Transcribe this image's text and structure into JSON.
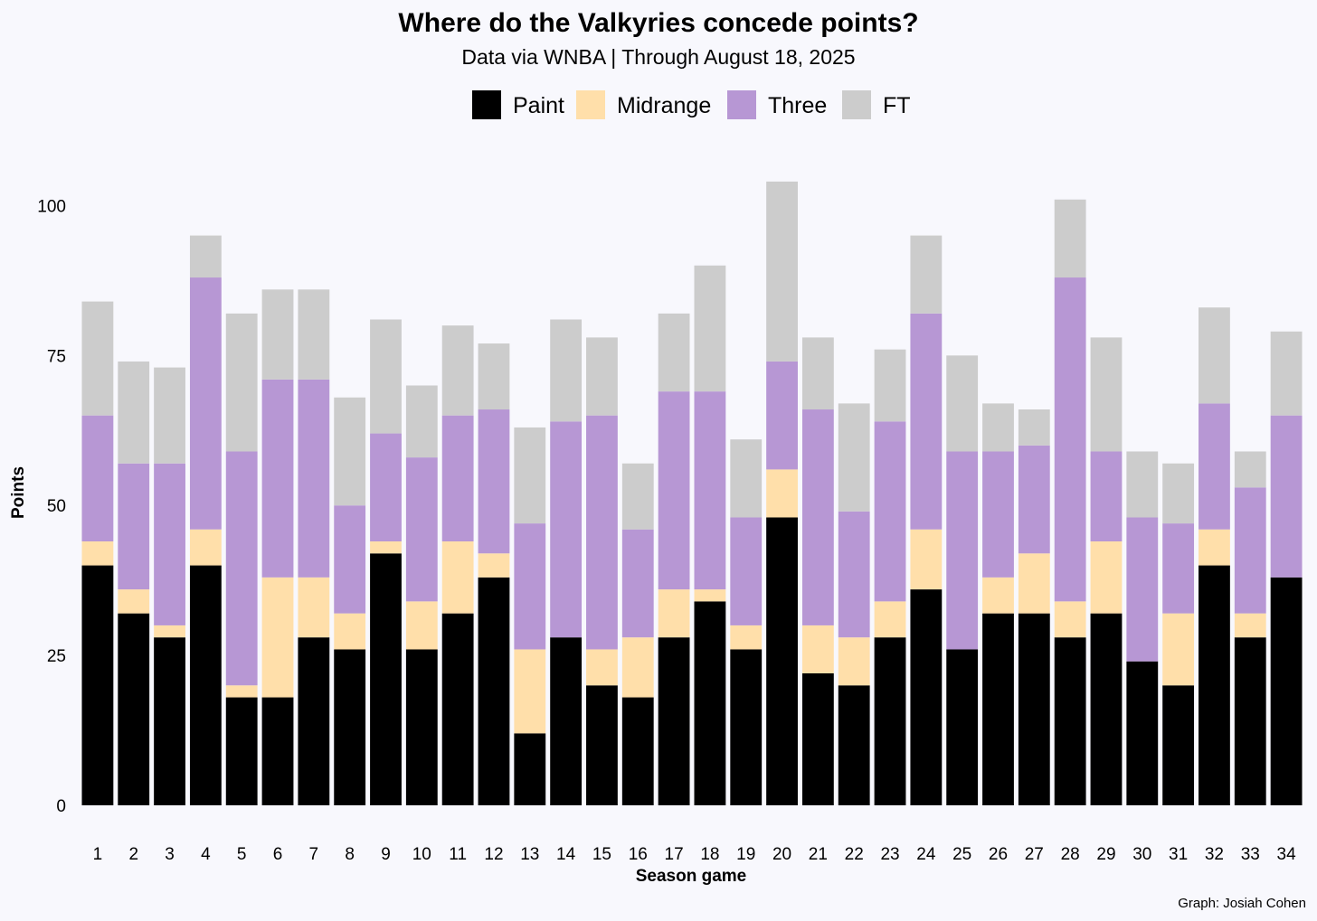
{
  "chart_data": {
    "type": "bar",
    "stacked": true,
    "title": "Where do the Valkyries concede points?",
    "subtitle": "Data via WNBA  |  Through August 18, 2025",
    "xlabel": "Season game",
    "ylabel": "Points",
    "caption": "Graph: Josiah Cohen",
    "ylim": [
      0,
      106
    ],
    "yticks": [
      0,
      25,
      50,
      75,
      100
    ],
    "grid": false,
    "legend_position": "top",
    "categories": [
      "1",
      "2",
      "3",
      "4",
      "5",
      "6",
      "7",
      "8",
      "9",
      "10",
      "11",
      "12",
      "13",
      "14",
      "15",
      "16",
      "17",
      "18",
      "19",
      "20",
      "21",
      "22",
      "23",
      "24",
      "25",
      "26",
      "27",
      "28",
      "29",
      "30",
      "31",
      "32",
      "33",
      "34"
    ],
    "series": [
      {
        "name": "Paint",
        "color": "#000000",
        "values": [
          40,
          32,
          28,
          40,
          18,
          18,
          28,
          26,
          42,
          26,
          32,
          38,
          12,
          28,
          20,
          18,
          28,
          34,
          26,
          48,
          22,
          20,
          28,
          36,
          26,
          32,
          32,
          28,
          32,
          24,
          20,
          40,
          28,
          38
        ]
      },
      {
        "name": "Midrange",
        "color": "#ffdfaa",
        "values": [
          4,
          4,
          2,
          6,
          2,
          20,
          10,
          6,
          2,
          8,
          12,
          4,
          14,
          0,
          6,
          10,
          8,
          2,
          4,
          8,
          8,
          8,
          6,
          10,
          0,
          6,
          10,
          6,
          12,
          0,
          12,
          6,
          4,
          0
        ]
      },
      {
        "name": "Three",
        "color": "#b797d4",
        "values": [
          21,
          21,
          27,
          42,
          39,
          33,
          33,
          18,
          18,
          24,
          21,
          24,
          21,
          36,
          39,
          18,
          33,
          33,
          18,
          18,
          36,
          21,
          30,
          36,
          33,
          21,
          18,
          54,
          15,
          24,
          15,
          21,
          21,
          27
        ]
      },
      {
        "name": "FT",
        "color": "#cccccc",
        "values": [
          19,
          17,
          16,
          7,
          23,
          15,
          15,
          18,
          19,
          12,
          15,
          11,
          16,
          17,
          13,
          11,
          13,
          21,
          13,
          30,
          12,
          18,
          12,
          13,
          16,
          8,
          6,
          13,
          19,
          11,
          10,
          16,
          6,
          14
        ]
      }
    ]
  }
}
